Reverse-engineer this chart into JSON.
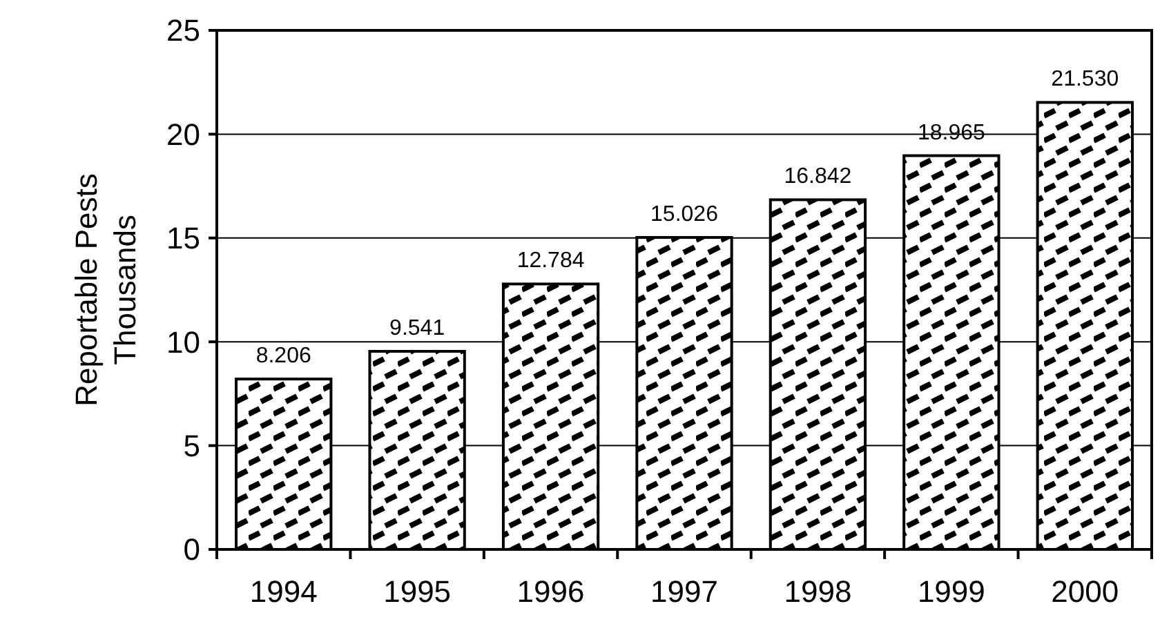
{
  "chart_data": {
    "type": "bar",
    "ylabel": "Reportable Pests\nThousands",
    "categories": [
      "1994",
      "1995",
      "1996",
      "1997",
      "1998",
      "1999",
      "2000"
    ],
    "values": [
      8.206,
      9.541,
      12.784,
      15.026,
      16.842,
      18.965,
      21.53
    ],
    "value_labels": [
      "8.206",
      "9.541",
      "12.784",
      "15.026",
      "16.842",
      "18.965",
      "21.530"
    ],
    "color": "#000000",
    "ylim": [
      0,
      25
    ],
    "yticks": [
      0,
      5,
      10,
      15,
      20,
      25
    ],
    "grid": "y"
  }
}
